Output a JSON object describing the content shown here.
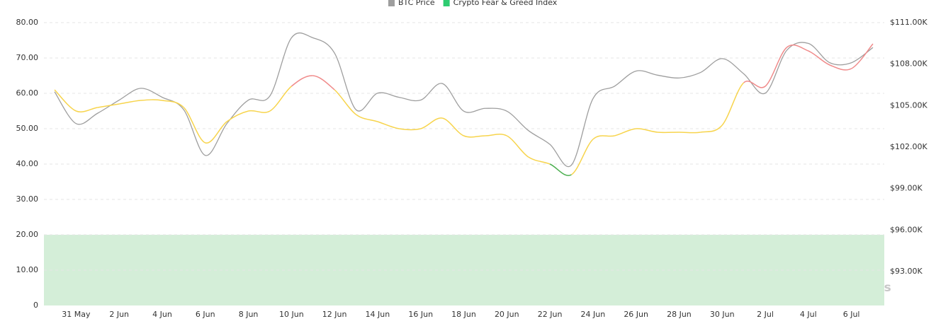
{
  "chart_data": {
    "type": "line",
    "categories": [
      null,
      "31 May",
      null,
      "2 Jun",
      null,
      "4 Jun",
      null,
      "6 Jun",
      null,
      "8 Jun",
      null,
      "10 Jun",
      null,
      "12 Jun",
      null,
      "14 Jun",
      null,
      "16 Jun",
      null,
      "18 Jun",
      null,
      "20 Jun",
      null,
      "22 Jun",
      null,
      "24 Jun",
      null,
      "26 Jun",
      null,
      "28 Jun",
      null,
      "30 Jun",
      null,
      "2 Jul",
      null,
      "4 Jul",
      null,
      "6 Jul",
      null
    ],
    "series": [
      {
        "name": "BTC Price",
        "color": "#9e9e9e",
        "axis": "y2",
        "values": [
          106000,
          103700,
          104450,
          105400,
          106250,
          105600,
          104700,
          101400,
          103700,
          105400,
          105700,
          109900,
          109900,
          108800,
          104700,
          105900,
          105600,
          105400,
          106600,
          104600,
          104800,
          104600,
          103200,
          102200,
          100700,
          105500,
          106400,
          107500,
          107200,
          107000,
          107400,
          108400,
          107300,
          105900,
          109000,
          109500,
          108100,
          108100,
          109200
        ]
      },
      {
        "name": "Crypto Fear & Greed Index",
        "color": "#2ecc71",
        "values": [
          61,
          55,
          56,
          57,
          58,
          58,
          56,
          46,
          52,
          55,
          55,
          62,
          65,
          61,
          54,
          52,
          50,
          50,
          53,
          48,
          48,
          48,
          42,
          40,
          37,
          47,
          48,
          50,
          49,
          49,
          49,
          51,
          63,
          62,
          73,
          72,
          68,
          67,
          74
        ],
        "color_zones": [
          {
            "below": 40,
            "color": "#4caf50"
          },
          {
            "below": 60,
            "color": "#f7d44c"
          },
          {
            "color": "#f08a8a"
          }
        ]
      }
    ],
    "ylim": [
      0,
      80
    ],
    "yticks": [
      0,
      {
        "value": 10,
        "label": "10.00"
      },
      {
        "value": 20,
        "label": "20.00"
      },
      {
        "value": 30,
        "label": "30.00"
      },
      {
        "value": 40,
        "label": "40.00"
      },
      {
        "value": 50,
        "label": "50.00"
      },
      {
        "value": 60,
        "label": "60.00"
      },
      {
        "value": 70,
        "label": "70.00"
      },
      {
        "value": 80,
        "label": "80.00"
      }
    ],
    "y2lim": [
      90550,
      111000
    ],
    "y2ticks": [
      {
        "value": 93000,
        "label": "$93.00K"
      },
      {
        "value": 96000,
        "label": "$96.00K"
      },
      {
        "value": 99000,
        "label": "$99.00K"
      },
      {
        "value": 102000,
        "label": "$102.00K"
      },
      {
        "value": 105000,
        "label": "$105.00K"
      },
      {
        "value": 108000,
        "label": "$108.00K"
      },
      {
        "value": 111000,
        "label": "$111.00K"
      }
    ],
    "band": {
      "from": 0,
      "to": 20,
      "color": "#d4eed8"
    },
    "grid": true,
    "legend": "top",
    "watermark": "coinglass"
  }
}
